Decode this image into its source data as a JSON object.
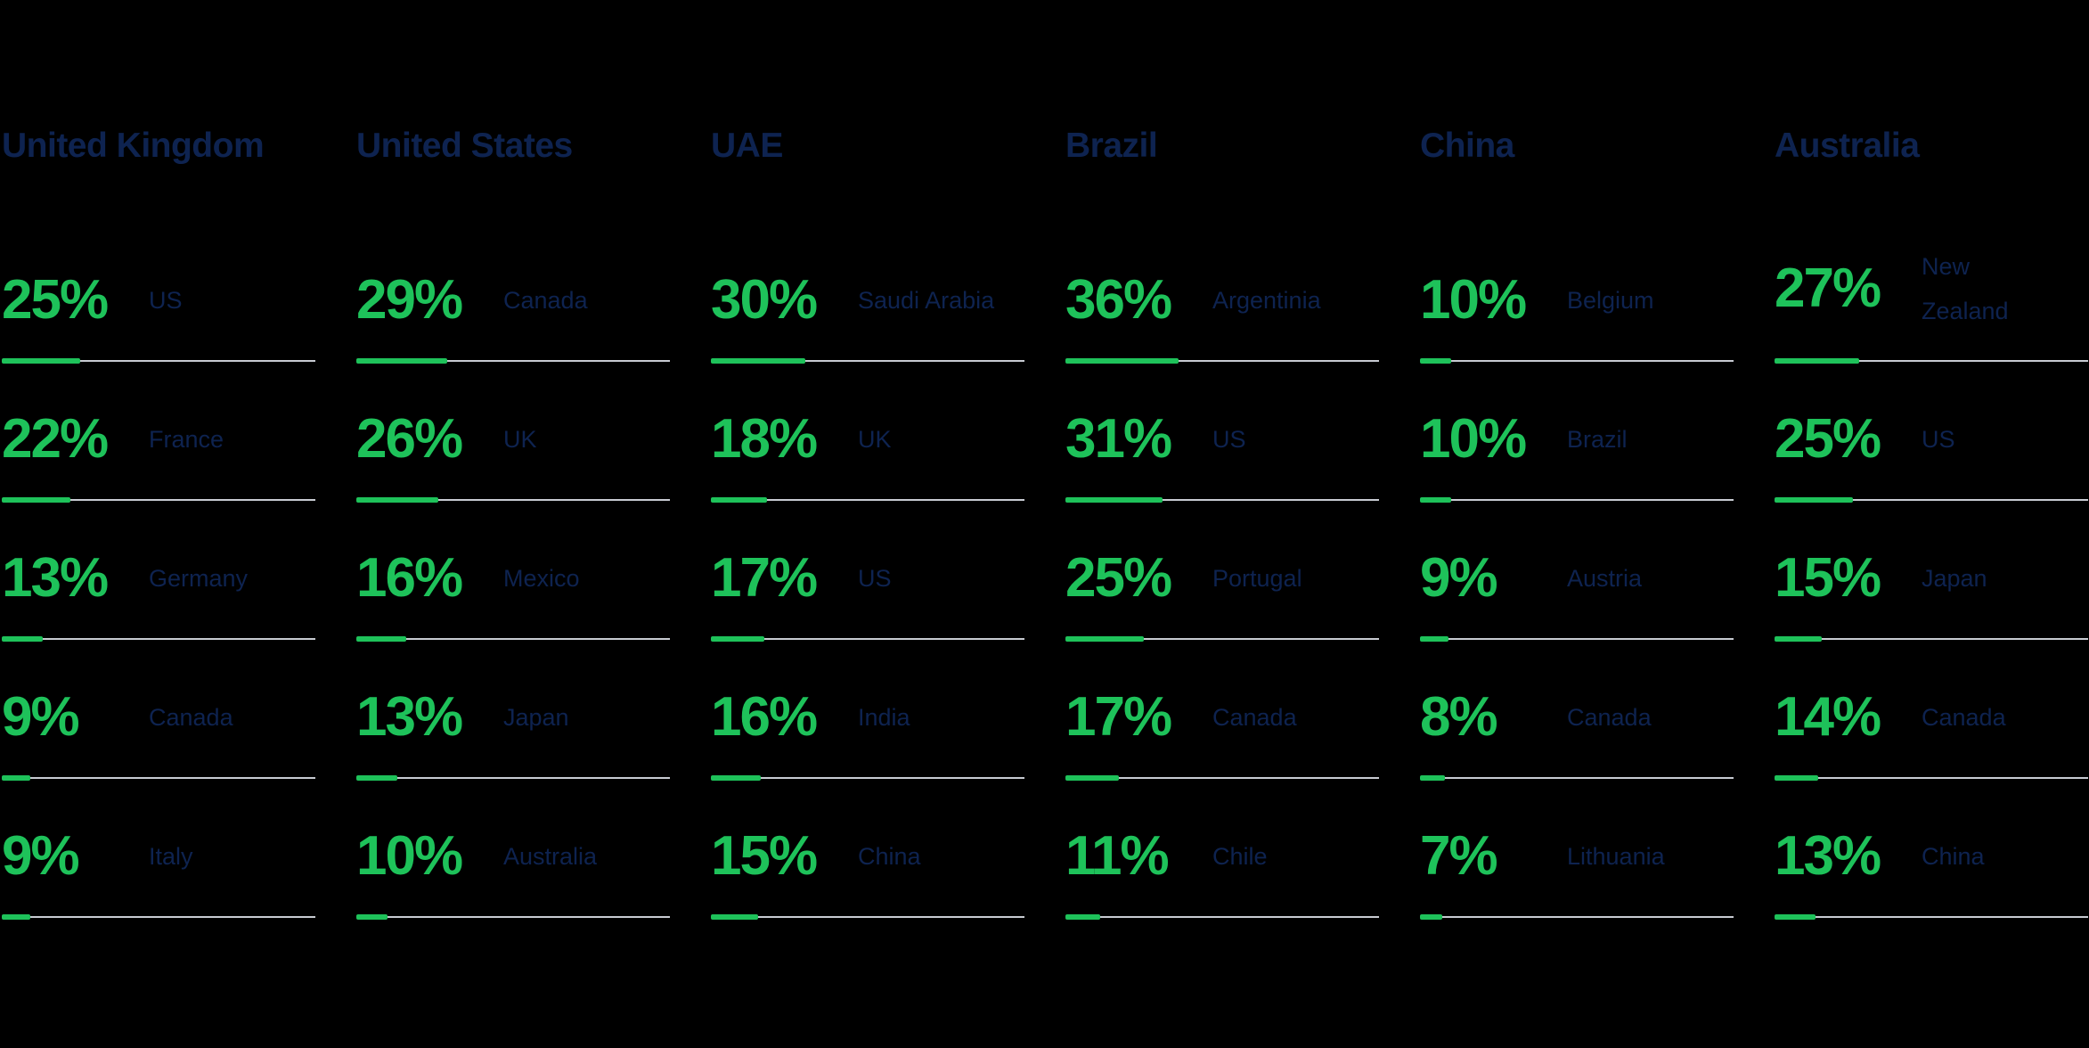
{
  "colors": {
    "background": "#000000",
    "accent_green": "#1EC25A",
    "navy_text": "#0E2350",
    "track_gray": "#C8CBD2"
  },
  "columns": [
    {
      "header": "United Kingdom",
      "rows": [
        {
          "value": 25,
          "value_label": "25%",
          "country": "US"
        },
        {
          "value": 22,
          "value_label": "22%",
          "country": "France"
        },
        {
          "value": 13,
          "value_label": "13%",
          "country": "Germany"
        },
        {
          "value": 9,
          "value_label": "9%",
          "country": "Canada"
        },
        {
          "value": 9,
          "value_label": "9%",
          "country": "Italy"
        }
      ]
    },
    {
      "header": "United States",
      "rows": [
        {
          "value": 29,
          "value_label": "29%",
          "country": "Canada"
        },
        {
          "value": 26,
          "value_label": "26%",
          "country": "UK"
        },
        {
          "value": 16,
          "value_label": "16%",
          "country": "Mexico"
        },
        {
          "value": 13,
          "value_label": "13%",
          "country": "Japan"
        },
        {
          "value": 10,
          "value_label": "10%",
          "country": "Australia"
        }
      ]
    },
    {
      "header": "UAE",
      "rows": [
        {
          "value": 30,
          "value_label": "30%",
          "country": "Saudi Arabia"
        },
        {
          "value": 18,
          "value_label": "18%",
          "country": "UK"
        },
        {
          "value": 17,
          "value_label": "17%",
          "country": "US"
        },
        {
          "value": 16,
          "value_label": "16%",
          "country": "India"
        },
        {
          "value": 15,
          "value_label": "15%",
          "country": "China"
        }
      ]
    },
    {
      "header": "Brazil",
      "rows": [
        {
          "value": 36,
          "value_label": "36%",
          "country": "Argentinia"
        },
        {
          "value": 31,
          "value_label": "31%",
          "country": "US"
        },
        {
          "value": 25,
          "value_label": "25%",
          "country": "Portugal"
        },
        {
          "value": 17,
          "value_label": "17%",
          "country": "Canada"
        },
        {
          "value": 11,
          "value_label": "11%",
          "country": "Chile"
        }
      ]
    },
    {
      "header": "China",
      "rows": [
        {
          "value": 10,
          "value_label": "10%",
          "country": "Belgium"
        },
        {
          "value": 10,
          "value_label": "10%",
          "country": "Brazil"
        },
        {
          "value": 9,
          "value_label": "9%",
          "country": "Austria"
        },
        {
          "value": 8,
          "value_label": "8%",
          "country": "Canada"
        },
        {
          "value": 7,
          "value_label": "7%",
          "country": "Lithuania"
        }
      ]
    },
    {
      "header": "Australia",
      "rows": [
        {
          "value": 27,
          "value_label": "27%",
          "country": "New Zealand"
        },
        {
          "value": 25,
          "value_label": "25%",
          "country": "US"
        },
        {
          "value": 15,
          "value_label": "15%",
          "country": "Japan"
        },
        {
          "value": 14,
          "value_label": "14%",
          "country": "Canada"
        },
        {
          "value": 13,
          "value_label": "13%",
          "country": "China"
        }
      ]
    }
  ],
  "chart_data": {
    "type": "bar",
    "title": "",
    "unit": "%",
    "value_range": [
      0,
      100
    ],
    "layout": "six column groups, each with five horizontal percentage bars; green fill length equals value percent of full track width",
    "groups": [
      {
        "name": "United Kingdom",
        "categories": [
          "US",
          "France",
          "Germany",
          "Canada",
          "Italy"
        ],
        "values": [
          25,
          22,
          13,
          9,
          9
        ]
      },
      {
        "name": "United States",
        "categories": [
          "Canada",
          "UK",
          "Mexico",
          "Japan",
          "Australia"
        ],
        "values": [
          29,
          26,
          16,
          13,
          10
        ]
      },
      {
        "name": "UAE",
        "categories": [
          "Saudi Arabia",
          "UK",
          "US",
          "India",
          "China"
        ],
        "values": [
          30,
          18,
          17,
          16,
          15
        ]
      },
      {
        "name": "Brazil",
        "categories": [
          "Argentinia",
          "US",
          "Portugal",
          "Canada",
          "Chile"
        ],
        "values": [
          36,
          31,
          25,
          17,
          11
        ]
      },
      {
        "name": "China",
        "categories": [
          "Belgium",
          "Brazil",
          "Austria",
          "Canada",
          "Lithuania"
        ],
        "values": [
          10,
          10,
          9,
          8,
          7
        ]
      },
      {
        "name": "Australia",
        "categories": [
          "New Zealand",
          "US",
          "Japan",
          "Canada",
          "China"
        ],
        "values": [
          27,
          25,
          15,
          14,
          13
        ]
      }
    ]
  }
}
